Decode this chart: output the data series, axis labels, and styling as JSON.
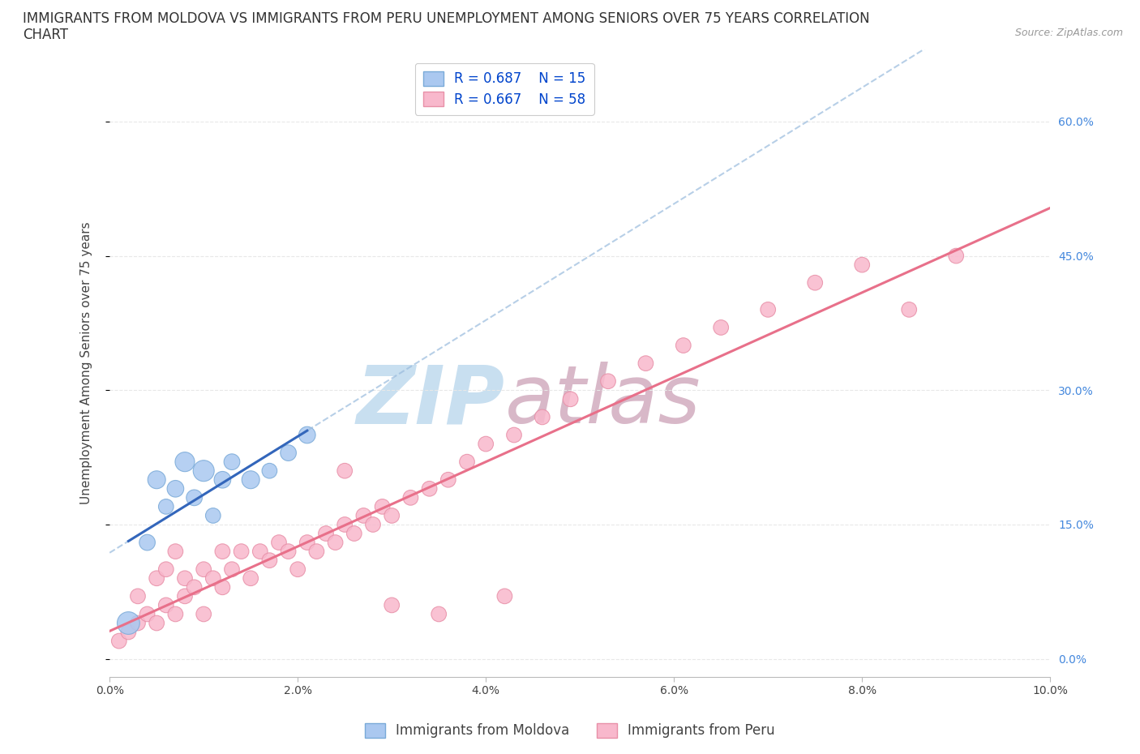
{
  "title_line1": "IMMIGRANTS FROM MOLDOVA VS IMMIGRANTS FROM PERU UNEMPLOYMENT AMONG SENIORS OVER 75 YEARS CORRELATION",
  "title_line2": "CHART",
  "source": "Source: ZipAtlas.com",
  "ylabel": "Unemployment Among Seniors over 75 years",
  "xlim": [
    0.0,
    0.1
  ],
  "ylim": [
    -0.02,
    0.68
  ],
  "yticks": [
    0.0,
    0.15,
    0.3,
    0.45,
    0.6
  ],
  "xticks": [
    0.0,
    0.02,
    0.04,
    0.06,
    0.08,
    0.1
  ],
  "xtick_labels": [
    "0.0%",
    "2.0%",
    "4.0%",
    "6.0%",
    "8.0%",
    "10.0%"
  ],
  "ytick_labels": [
    "0.0%",
    "15.0%",
    "30.0%",
    "45.0%",
    "60.0%"
  ],
  "moldova_color": "#aac8f0",
  "moldova_edge_color": "#7aaad8",
  "moldova_line_color": "#3366bb",
  "peru_color": "#f8b8cc",
  "peru_edge_color": "#e890a8",
  "peru_line_color": "#e8708a",
  "watermark_zip_color": "#c8dff0",
  "watermark_atlas_color": "#d8b8c8",
  "background_color": "#ffffff",
  "grid_color": "#e8e8e8",
  "moldova_R": 0.687,
  "moldova_N": 15,
  "peru_R": 0.667,
  "peru_N": 58,
  "legend_label_moldova": "Immigrants from Moldova",
  "legend_label_peru": "Immigrants from Peru",
  "moldova_x": [
    0.002,
    0.004,
    0.005,
    0.006,
    0.007,
    0.008,
    0.009,
    0.01,
    0.011,
    0.012,
    0.013,
    0.015,
    0.017,
    0.019,
    0.021
  ],
  "moldova_y": [
    0.04,
    0.13,
    0.2,
    0.17,
    0.19,
    0.22,
    0.18,
    0.21,
    0.16,
    0.2,
    0.22,
    0.2,
    0.21,
    0.23,
    0.25
  ],
  "moldova_sizes": [
    400,
    200,
    250,
    180,
    220,
    300,
    200,
    350,
    180,
    220,
    200,
    250,
    180,
    200,
    220
  ],
  "peru_x": [
    0.001,
    0.002,
    0.003,
    0.003,
    0.004,
    0.005,
    0.005,
    0.006,
    0.006,
    0.007,
    0.007,
    0.008,
    0.008,
    0.009,
    0.01,
    0.01,
    0.011,
    0.012,
    0.012,
    0.013,
    0.014,
    0.015,
    0.016,
    0.017,
    0.018,
    0.019,
    0.02,
    0.021,
    0.022,
    0.023,
    0.024,
    0.025,
    0.026,
    0.027,
    0.028,
    0.029,
    0.03,
    0.032,
    0.034,
    0.036,
    0.038,
    0.04,
    0.043,
    0.046,
    0.049,
    0.053,
    0.057,
    0.061,
    0.065,
    0.07,
    0.075,
    0.08,
    0.085,
    0.09,
    0.03,
    0.025,
    0.035,
    0.042
  ],
  "peru_y": [
    0.02,
    0.03,
    0.04,
    0.07,
    0.05,
    0.04,
    0.09,
    0.06,
    0.1,
    0.05,
    0.12,
    0.07,
    0.09,
    0.08,
    0.05,
    0.1,
    0.09,
    0.08,
    0.12,
    0.1,
    0.12,
    0.09,
    0.12,
    0.11,
    0.13,
    0.12,
    0.1,
    0.13,
    0.12,
    0.14,
    0.13,
    0.15,
    0.14,
    0.16,
    0.15,
    0.17,
    0.16,
    0.18,
    0.19,
    0.2,
    0.22,
    0.24,
    0.25,
    0.27,
    0.29,
    0.31,
    0.33,
    0.35,
    0.37,
    0.39,
    0.42,
    0.44,
    0.39,
    0.45,
    0.06,
    0.21,
    0.05,
    0.07
  ],
  "peru_sizes": [
    180,
    180,
    180,
    180,
    180,
    180,
    180,
    180,
    180,
    180,
    180,
    180,
    180,
    180,
    180,
    180,
    180,
    180,
    180,
    180,
    180,
    180,
    180,
    180,
    180,
    180,
    180,
    180,
    180,
    180,
    180,
    180,
    180,
    180,
    180,
    180,
    180,
    180,
    180,
    180,
    180,
    180,
    180,
    180,
    180,
    180,
    180,
    180,
    180,
    180,
    180,
    180,
    180,
    180,
    180,
    180,
    180,
    180
  ],
  "title_fontsize": 12,
  "axis_label_fontsize": 11,
  "tick_fontsize": 10,
  "legend_fontsize": 12,
  "watermark_fontsize": 72
}
